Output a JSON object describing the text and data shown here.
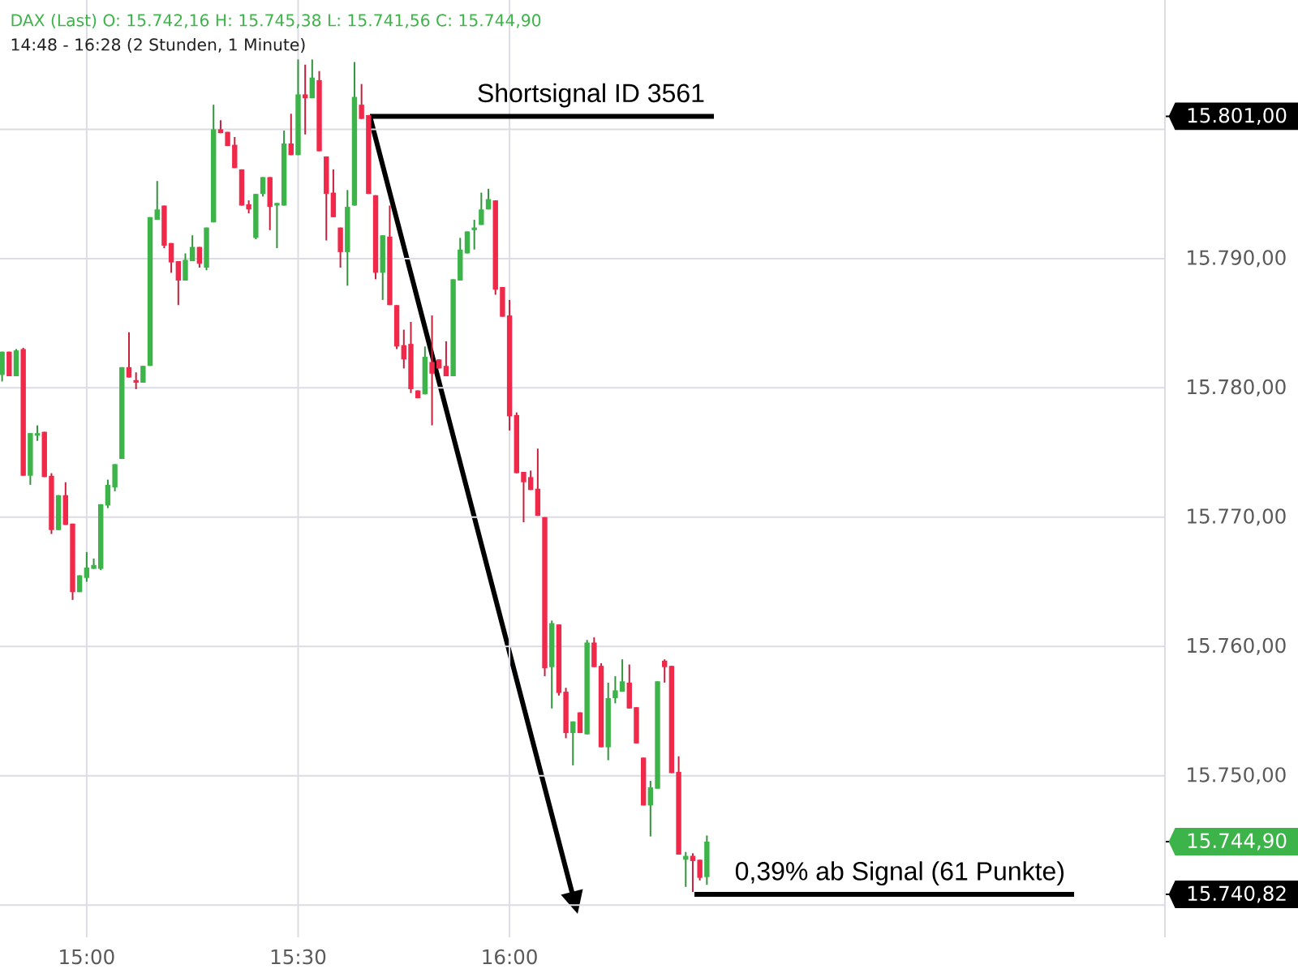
{
  "chart_data": {
    "type": "candlestick",
    "title": "DAX (Last) O: 15.742,16 H: 15.745,38 L: 15.741,56 C: 15.744,90",
    "subtitle": "14:48 - 16:28 (2 Stunden, 1 Minute)",
    "x": [
      14.8,
      14.8167,
      14.8333,
      14.85,
      14.8667,
      14.8833,
      14.9,
      14.9167,
      14.9333,
      14.95,
      14.9667,
      14.9833,
      15,
      15.0167,
      15.0333,
      15.05,
      15.0667,
      15.0833,
      15.1,
      15.1167,
      15.1333,
      15.15,
      15.1667,
      15.1833,
      15.2,
      15.2167,
      15.2333,
      15.25,
      15.2667,
      15.2833,
      15.3,
      15.3167,
      15.3333,
      15.35,
      15.3667,
      15.3833,
      15.4,
      15.4167,
      15.4333,
      15.45,
      15.4667,
      15.4833,
      15.5,
      15.5167,
      15.5333,
      15.55,
      15.5667,
      15.5833,
      15.6,
      15.6167,
      15.6333,
      15.65,
      15.6667,
      15.6833,
      15.7,
      15.7167,
      15.7333,
      15.75,
      15.7667,
      15.7833,
      15.8,
      15.8167,
      15.8333,
      15.85,
      15.8667,
      15.8833,
      15.9,
      15.9167,
      15.9333,
      15.95,
      15.9667,
      15.9833,
      16,
      16.0167,
      16.0333,
      16.05,
      16.0667,
      16.0833,
      16.1,
      16.1167,
      16.1333,
      16.15,
      16.1667,
      16.1833,
      16.2,
      16.2167,
      16.2333,
      16.25,
      16.2667,
      16.2833,
      16.3,
      16.3167,
      16.3333,
      16.35,
      16.3667,
      16.3833,
      16.4,
      16.4167,
      16.4333,
      16.45,
      16.4667
    ],
    "ohlc": [
      [
        15781.0,
        15782.8,
        15780.5,
        15782.8
      ],
      [
        15782.8,
        15782.8,
        15780.9,
        15780.9
      ],
      [
        15780.9,
        15783.0,
        15780.9,
        15782.9
      ],
      [
        15783.0,
        15783.1,
        15773.2,
        15773.2
      ],
      [
        15773.2,
        15776.5,
        15772.5,
        15776.5
      ],
      [
        15776.3,
        15777.1,
        15775.9,
        15776.5
      ],
      [
        15776.6,
        15776.6,
        15773.1,
        15773.1
      ],
      [
        15773.2,
        15773.4,
        15768.7,
        15769.0
      ],
      [
        15769.0,
        15771.7,
        15769.0,
        15771.7
      ],
      [
        15771.7,
        15772.7,
        15769.4,
        15769.4
      ],
      [
        15769.5,
        15769.5,
        15763.6,
        15764.2
      ],
      [
        15764.2,
        15765.5,
        15764.2,
        15765.5
      ],
      [
        15765.3,
        15767.3,
        15765.0,
        15766.1
      ],
      [
        15766.0,
        15766.8,
        15766.0,
        15766.3
      ],
      [
        15766.0,
        15771.0,
        15765.9,
        15771.0
      ],
      [
        15770.9,
        15772.9,
        15770.7,
        15772.5
      ],
      [
        15772.3,
        15774.1,
        15772.0,
        15774.1
      ],
      [
        15774.5,
        15781.6,
        15774.5,
        15781.6
      ],
      [
        15781.6,
        15784.3,
        15780.8,
        15780.8
      ],
      [
        15780.6,
        15781.2,
        15779.9,
        15780.4
      ],
      [
        15780.4,
        15781.7,
        15780.4,
        15781.7
      ],
      [
        15781.7,
        15793.2,
        15781.7,
        15793.2
      ],
      [
        15793.0,
        15796.0,
        15793.0,
        15793.8
      ],
      [
        15794.1,
        15794.1,
        15790.8,
        15791.0
      ],
      [
        15791.2,
        15791.2,
        15788.9,
        15789.7
      ],
      [
        15789.8,
        15789.8,
        15786.4,
        15788.3
      ],
      [
        15788.3,
        15790.4,
        15788.3,
        15789.9
      ],
      [
        15789.8,
        15791.8,
        15789.8,
        15790.9
      ],
      [
        15790.9,
        15790.9,
        15789.3,
        15789.6
      ],
      [
        15789.3,
        15792.4,
        15789.1,
        15792.4
      ],
      [
        15792.8,
        15801.9,
        15792.8,
        15800.0
      ],
      [
        15800.0,
        15800.7,
        15799.7,
        15799.7
      ],
      [
        15799.8,
        15799.8,
        15798.7,
        15798.7
      ],
      [
        15798.8,
        15799.4,
        15797.0,
        15797.0
      ],
      [
        15796.9,
        15796.9,
        15794.1,
        15794.1
      ],
      [
        15794.2,
        15794.5,
        15793.5,
        15793.8
      ],
      [
        15791.6,
        15795.0,
        15791.5,
        15795.0
      ],
      [
        15795.0,
        15796.3,
        15794.8,
        15796.3
      ],
      [
        15796.3,
        15796.3,
        15792.2,
        15794.0
      ],
      [
        15794.1,
        15794.3,
        15790.8,
        15794.3
      ],
      [
        15794.1,
        15799.9,
        15794.1,
        15798.9
      ],
      [
        15798.9,
        15801.2,
        15798.0,
        15798.0
      ],
      [
        15798.0,
        15805.4,
        15798.0,
        15802.7
      ],
      [
        15802.7,
        15805.0,
        15799.6,
        15802.4
      ],
      [
        15802.4,
        15805.4,
        15802.4,
        15804.0
      ],
      [
        15803.8,
        15804.5,
        15798.3,
        15798.3
      ],
      [
        15797.9,
        15797.9,
        15791.4,
        15795.0
      ],
      [
        15795.1,
        15796.9,
        15793.2,
        15793.2
      ],
      [
        15792.4,
        15792.4,
        15789.3,
        15790.5
      ],
      [
        15790.5,
        15795.3,
        15787.9,
        15794.0
      ],
      [
        15794.1,
        15805.2,
        15794.1,
        15802.5
      ],
      [
        15801.9,
        15803.5,
        15800.8,
        15800.8
      ],
      [
        15801.1,
        15801.1,
        15795.0,
        15795.0
      ],
      [
        15794.9,
        15794.9,
        15788.4,
        15788.9
      ],
      [
        15788.9,
        15791.8,
        15786.8,
        15791.8
      ],
      [
        15791.7,
        15794.1,
        15786.4,
        15786.4
      ],
      [
        15786.4,
        15786.4,
        15783.0,
        15783.2
      ],
      [
        15783.3,
        15784.5,
        15781.5,
        15782.2
      ],
      [
        15783.4,
        15785.1,
        15779.6,
        15779.9
      ],
      [
        15779.8,
        15779.8,
        15779.2,
        15779.2
      ],
      [
        15779.5,
        15783.2,
        15779.5,
        15782.4
      ],
      [
        15782.0,
        15785.6,
        15777.1,
        15781.1
      ],
      [
        15782.2,
        15782.2,
        15781.5,
        15781.5
      ],
      [
        15781.7,
        15783.6,
        15780.9,
        15780.9
      ],
      [
        15780.9,
        15788.4,
        15780.9,
        15788.4
      ],
      [
        15788.3,
        15791.6,
        15788.3,
        15790.7
      ],
      [
        15790.4,
        15792.1,
        15790.4,
        15792.1
      ],
      [
        15792.2,
        15793.0,
        15790.7,
        15792.4
      ],
      [
        15792.6,
        15795.1,
        15792.6,
        15793.8
      ],
      [
        15793.8,
        15795.4,
        15793.8,
        15794.6
      ],
      [
        15794.5,
        15794.5,
        15787.2,
        15787.6
      ],
      [
        15787.8,
        15787.8,
        15785.5,
        15785.5
      ],
      [
        15785.6,
        15786.8,
        15776.7,
        15777.8
      ],
      [
        15777.9,
        15778.1,
        15773.4,
        15773.4
      ],
      [
        15773.5,
        15773.5,
        15769.6,
        15772.7
      ],
      [
        15773.1,
        15773.6,
        15772.1,
        15772.1
      ],
      [
        15772.2,
        15775.3,
        15770.1,
        15770.1
      ],
      [
        15770.0,
        15770.0,
        15757.7,
        15758.3
      ],
      [
        15758.4,
        15762.0,
        15755.2,
        15761.8
      ],
      [
        15761.7,
        15761.7,
        15756.2,
        15756.4
      ],
      [
        15756.5,
        15756.8,
        15752.9,
        15753.3
      ],
      [
        15753.3,
        15754.2,
        15750.8,
        15754.2
      ],
      [
        15754.9,
        15754.9,
        15753.3,
        15753.3
      ],
      [
        15753.2,
        15760.5,
        15753.2,
        15760.3
      ],
      [
        15760.3,
        15760.7,
        15758.4,
        15758.4
      ],
      [
        15758.5,
        15758.7,
        15752.2,
        15752.2
      ],
      [
        15752.2,
        15757.2,
        15751.2,
        15756.0
      ],
      [
        15756.0,
        15757.7,
        15755.6,
        15756.6
      ],
      [
        15756.5,
        15759.0,
        15756.5,
        15757.3
      ],
      [
        15757.2,
        15758.6,
        15755.2,
        15755.2
      ],
      [
        15755.3,
        15755.3,
        15752.5,
        15752.5
      ],
      [
        15751.4,
        15751.4,
        15747.7,
        15747.7
      ],
      [
        15747.7,
        15749.6,
        15745.3,
        15749.1
      ],
      [
        15749.0,
        15757.3,
        15749.0,
        15757.3
      ],
      [
        15758.9,
        15759.0,
        15757.2,
        15758.4
      ],
      [
        15758.5,
        15758.5,
        15750.2,
        15750.2
      ],
      [
        15750.3,
        15751.5,
        15743.9,
        15743.9
      ],
      [
        15743.5,
        15744.1,
        15741.4,
        15743.8
      ],
      [
        15743.8,
        15744.0,
        15741.0,
        15743.4
      ],
      [
        15743.5,
        15743.5,
        15741.9,
        15742.1
      ],
      [
        15742.16,
        15745.38,
        15741.56,
        15744.9
      ]
    ],
    "colors": [
      "#3db449",
      "#f0284a",
      "#3db449",
      "#f0284a",
      "#3db449",
      "#3db449",
      "#f0284a",
      "#f0284a",
      "#3db449",
      "#f0284a",
      "#f0284a",
      "#3db449",
      "#3db449",
      "#3db449",
      "#3db449",
      "#3db449",
      "#3db449",
      "#3db449",
      "#f0284a",
      "#f0284a",
      "#3db449",
      "#3db449",
      "#3db449",
      "#f0284a",
      "#f0284a",
      "#f0284a",
      "#3db449",
      "#3db449",
      "#f0284a",
      "#3db449",
      "#3db449",
      "#f0284a",
      "#f0284a",
      "#f0284a",
      "#f0284a",
      "#f0284a",
      "#3db449",
      "#3db449",
      "#f0284a",
      "#3db449",
      "#3db449",
      "#f0284a",
      "#3db449",
      "#f0284a",
      "#3db449",
      "#f0284a",
      "#f0284a",
      "#f0284a",
      "#f0284a",
      "#3db449",
      "#3db449",
      "#f0284a",
      "#f0284a",
      "#f0284a",
      "#3db449",
      "#f0284a",
      "#f0284a",
      "#f0284a",
      "#f0284a",
      "#f0284a",
      "#3db449",
      "#f0284a",
      "#f0284a",
      "#f0284a",
      "#3db449",
      "#3db449",
      "#3db449",
      "#3db449",
      "#3db449",
      "#3db449",
      "#f0284a",
      "#f0284a",
      "#f0284a",
      "#f0284a",
      "#f0284a",
      "#f0284a",
      "#f0284a",
      "#f0284a",
      "#3db449",
      "#f0284a",
      "#f0284a",
      "#3db449",
      "#f0284a",
      "#3db449",
      "#f0284a",
      "#f0284a",
      "#3db449",
      "#3db449",
      "#3db449",
      "#f0284a",
      "#f0284a",
      "#f0284a",
      "#3db449",
      "#3db449",
      "#f0284a",
      "#f0284a",
      "#f0284a",
      "#3db449",
      "#f0284a",
      "#f0284a",
      "#3db449"
    ],
    "xlim": [
      14.795,
      17.55
    ],
    "ylim": [
      15737.5,
      15810
    ],
    "y2lim": [
      15737.5,
      15810
    ],
    "xticks": [
      {
        "value": 15,
        "label": "15:00"
      },
      {
        "value": 15.5,
        "label": "15:30"
      },
      {
        "value": 16,
        "label": "16:00"
      }
    ],
    "yticks": [
      {
        "value": 15740,
        "label": null
      },
      {
        "value": 15750,
        "label": "15.750,00"
      },
      {
        "value": 15760,
        "label": "15.760,00"
      },
      {
        "value": 15770,
        "label": "15.770,00"
      },
      {
        "value": 15780,
        "label": "15.780,00"
      },
      {
        "value": 15790,
        "label": "15.790,00"
      },
      {
        "value": 15800,
        "label": null
      }
    ],
    "y2ticks": [
      {
        "value": 15801,
        "label": "15.801,00"
      },
      {
        "value": 15744.9,
        "label": "15.744,90"
      },
      {
        "value": 15740.82,
        "label": "15.740,82"
      }
    ],
    "grid": true,
    "ref_lines": [
      {
        "axis": "y",
        "value": 15801,
        "label": "Shortsignal ID 3561",
        "color": "#000000"
      },
      {
        "axis": "y",
        "value": 15740.82,
        "label": "0,39% ab Signal (61 Punkte)",
        "color": "#000000"
      }
    ]
  }
}
